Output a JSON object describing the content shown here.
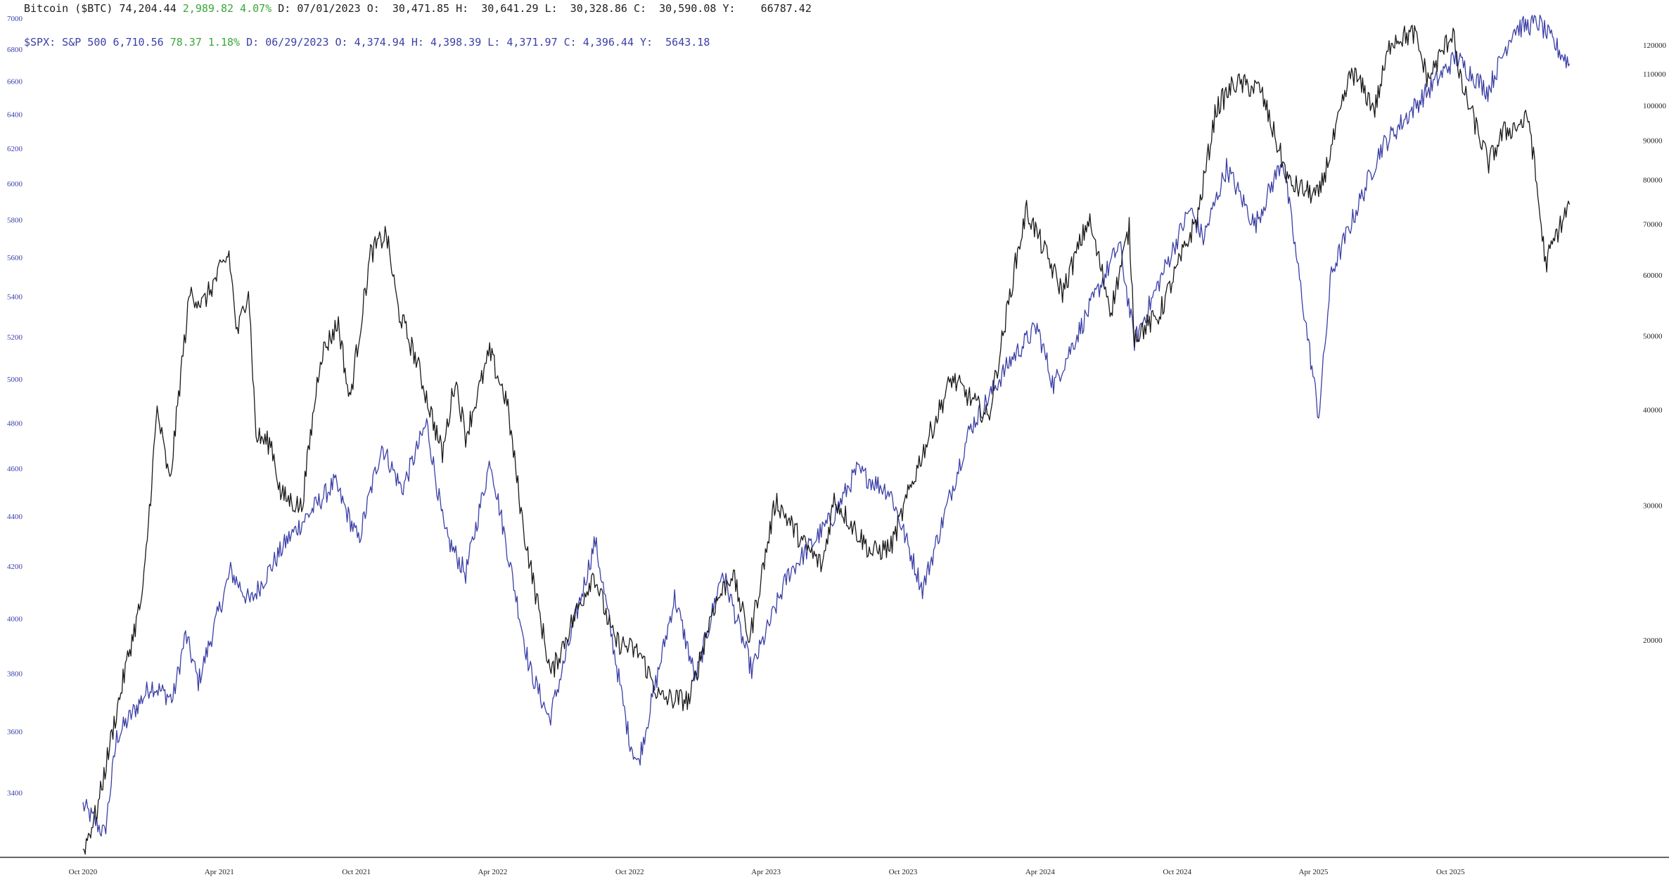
{
  "legend": {
    "btc": {
      "name": "Bitcoin ($BTC)",
      "last": "74,204.44",
      "change": "2,989.82",
      "change_pct": "4.07%",
      "date_label": "D:",
      "date": "07/01/2023",
      "open_label": "O:",
      "open": "30,471.85",
      "high_label": "H:",
      "high": "30,641.29",
      "low_label": "L:",
      "low": "30,328.86",
      "close_label": "C:",
      "close": "30,590.08",
      "y_label": "Y:",
      "y": "66787.42"
    },
    "spx": {
      "name": "$SPX: S&P 500",
      "last": "6,710.56",
      "change": "78.37",
      "change_pct": "1.18%",
      "date_label": "D:",
      "date": "06/29/2023",
      "open_label": "O:",
      "open": "4,374.94",
      "high_label": "H:",
      "high": "4,398.39",
      "low_label": "L:",
      "low": "4,371.97",
      "close_label": "C:",
      "close": "4,396.44",
      "y_label": "Y:",
      "y": "5643.18"
    }
  },
  "colors": {
    "btc": "#1a1a1a",
    "spx": "#3b3fa6",
    "up": "#3aa63a",
    "axis": "#333333",
    "right_axis_text": "#222222",
    "left_axis_text": "#3b3fa6"
  },
  "chart_data": {
    "type": "line",
    "title": "",
    "x_axis": {
      "ticks": [
        "Oct 2020",
        "Apr 2021",
        "Oct 2021",
        "Apr 2022",
        "Oct 2022",
        "Apr 2023",
        "Oct 2023",
        "Apr 2024",
        "Oct 2024",
        "Apr 2025",
        "Oct 2025"
      ],
      "range": [
        "2020-10",
        "2026-03"
      ]
    },
    "left_axis": {
      "series": "$SPX: S&P 500",
      "scale": "log",
      "range": [
        3220,
        7000
      ],
      "ticks": [
        3400,
        3600,
        3800,
        4000,
        4200,
        4400,
        4600,
        4800,
        5000,
        5200,
        5400,
        5600,
        5800,
        6000,
        6200,
        6400,
        6600,
        6800,
        7000
      ]
    },
    "right_axis": {
      "series": "Bitcoin ($BTC)",
      "scale": "log",
      "range": [
        10600,
        130000
      ],
      "ticks": [
        20000,
        30000,
        40000,
        50000,
        60000,
        70000,
        80000,
        90000,
        100000,
        110000,
        120000
      ]
    },
    "grid": false,
    "legend_placement": "top-left",
    "series": [
      {
        "name": "Bitcoin ($BTC)",
        "axis": "right",
        "points": [
          [
            "2020-10-01",
            10600
          ],
          [
            "2020-10-20",
            12000
          ],
          [
            "2020-11-10",
            15300
          ],
          [
            "2020-12-01",
            19200
          ],
          [
            "2020-12-20",
            23000
          ],
          [
            "2021-01-08",
            40000
          ],
          [
            "2021-01-25",
            32000
          ],
          [
            "2021-02-10",
            46000
          ],
          [
            "2021-02-21",
            57000
          ],
          [
            "2021-03-10",
            55000
          ],
          [
            "2021-04-14",
            64000
          ],
          [
            "2021-04-25",
            50000
          ],
          [
            "2021-05-10",
            58000
          ],
          [
            "2021-05-20",
            37000
          ],
          [
            "2021-06-10",
            36000
          ],
          [
            "2021-06-22",
            31000
          ],
          [
            "2021-07-20",
            29800
          ],
          [
            "2021-08-14",
            47000
          ],
          [
            "2021-09-07",
            52000
          ],
          [
            "2021-09-22",
            41000
          ],
          [
            "2021-10-20",
            64000
          ],
          [
            "2021-11-10",
            68000
          ],
          [
            "2021-11-26",
            54000
          ],
          [
            "2021-12-20",
            46500
          ],
          [
            "2022-01-24",
            35000
          ],
          [
            "2022-02-10",
            44000
          ],
          [
            "2022-02-24",
            37000
          ],
          [
            "2022-03-28",
            47500
          ],
          [
            "2022-04-20",
            41000
          ],
          [
            "2022-05-12",
            28000
          ],
          [
            "2022-06-18",
            18000
          ],
          [
            "2022-07-15",
            21000
          ],
          [
            "2022-08-14",
            24500
          ],
          [
            "2022-09-10",
            20000
          ],
          [
            "2022-10-15",
            19200
          ],
          [
            "2022-11-10",
            16800
          ],
          [
            "2022-12-20",
            16700
          ],
          [
            "2023-01-20",
            22000
          ],
          [
            "2023-02-15",
            24500
          ],
          [
            "2023-03-10",
            20000
          ],
          [
            "2023-04-14",
            30500
          ],
          [
            "2023-05-20",
            26800
          ],
          [
            "2023-06-15",
            25000
          ],
          [
            "2023-07-01",
            30590
          ],
          [
            "2023-08-20",
            26000
          ],
          [
            "2023-09-15",
            26500
          ],
          [
            "2023-10-24",
            34500
          ],
          [
            "2023-12-05",
            44000
          ],
          [
            "2024-01-23",
            39000
          ],
          [
            "2024-02-28",
            62000
          ],
          [
            "2024-03-14",
            73000
          ],
          [
            "2024-05-01",
            57000
          ],
          [
            "2024-06-05",
            71000
          ],
          [
            "2024-07-05",
            54000
          ],
          [
            "2024-07-29",
            69000
          ],
          [
            "2024-08-05",
            50000
          ],
          [
            "2024-09-06",
            53000
          ],
          [
            "2024-10-29",
            72000
          ],
          [
            "2024-11-22",
            99000
          ],
          [
            "2024-12-17",
            107000
          ],
          [
            "2025-01-20",
            105000
          ],
          [
            "2025-02-28",
            79000
          ],
          [
            "2025-04-08",
            76000
          ],
          [
            "2025-05-22",
            111000
          ],
          [
            "2025-06-22",
            99000
          ],
          [
            "2025-07-14",
            122000
          ],
          [
            "2025-08-14",
            124000
          ],
          [
            "2025-09-01",
            108000
          ],
          [
            "2025-10-06",
            126000
          ],
          [
            "2025-10-11",
            110000
          ],
          [
            "2025-11-21",
            84000
          ],
          [
            "2025-12-10",
            92000
          ],
          [
            "2026-01-14",
            96000
          ],
          [
            "2026-02-05",
            62000
          ],
          [
            "2026-02-20",
            68000
          ],
          [
            "2026-03-09",
            74204
          ]
        ]
      },
      {
        "name": "$SPX: S&P 500",
        "axis": "left",
        "points": [
          [
            "2020-10-01",
            3360
          ],
          [
            "2020-10-30",
            3270
          ],
          [
            "2020-11-15",
            3580
          ],
          [
            "2020-12-31",
            3760
          ],
          [
            "2021-01-29",
            3710
          ],
          [
            "2021-02-15",
            3940
          ],
          [
            "2021-03-04",
            3770
          ],
          [
            "2021-04-16",
            4180
          ],
          [
            "2021-05-12",
            4060
          ],
          [
            "2021-06-30",
            4300
          ],
          [
            "2021-08-15",
            4470
          ],
          [
            "2021-09-02",
            4540
          ],
          [
            "2021-10-04",
            4300
          ],
          [
            "2021-11-04",
            4700
          ],
          [
            "2021-12-01",
            4510
          ],
          [
            "2022-01-03",
            4800
          ],
          [
            "2022-01-27",
            4330
          ],
          [
            "2022-02-24",
            4170
          ],
          [
            "2022-03-29",
            4640
          ],
          [
            "2022-05-20",
            3820
          ],
          [
            "2022-06-16",
            3640
          ],
          [
            "2022-08-16",
            4300
          ],
          [
            "2022-09-30",
            3580
          ],
          [
            "2022-10-12",
            3490
          ],
          [
            "2022-11-30",
            4080
          ],
          [
            "2022-12-28",
            3780
          ],
          [
            "2023-02-02",
            4180
          ],
          [
            "2023-03-13",
            3810
          ],
          [
            "2023-05-01",
            4170
          ],
          [
            "2023-06-29",
            4396
          ],
          [
            "2023-07-31",
            4590
          ],
          [
            "2023-09-14",
            4500
          ],
          [
            "2023-10-27",
            4110
          ],
          [
            "2023-12-29",
            4770
          ],
          [
            "2024-02-22",
            5090
          ],
          [
            "2024-03-28",
            5250
          ],
          [
            "2024-04-19",
            4970
          ],
          [
            "2024-07-16",
            5670
          ],
          [
            "2024-08-05",
            5180
          ],
          [
            "2024-10-18",
            5860
          ],
          [
            "2024-11-05",
            5700
          ],
          [
            "2024-12-06",
            6090
          ],
          [
            "2025-01-13",
            5770
          ],
          [
            "2025-02-19",
            6140
          ],
          [
            "2025-04-08",
            4830
          ],
          [
            "2025-04-25",
            5520
          ],
          [
            "2025-06-30",
            6200
          ],
          [
            "2025-08-15",
            6450
          ],
          [
            "2025-10-08",
            6750
          ],
          [
            "2025-11-20",
            6540
          ],
          [
            "2025-12-24",
            6930
          ],
          [
            "2026-01-27",
            6970
          ],
          [
            "2026-02-25",
            6780
          ],
          [
            "2026-03-09",
            6710
          ]
        ]
      }
    ]
  }
}
